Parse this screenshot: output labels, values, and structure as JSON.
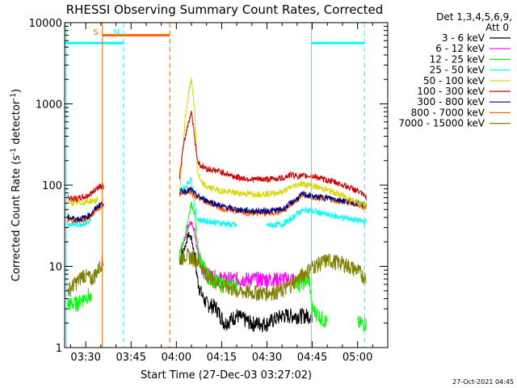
{
  "chart_data": {
    "type": "line",
    "title": "RHESSI Observing Summary Count Rates, Corrected",
    "xlabel": "Start Time (27-Dec-03 03:27:02)",
    "ylabel_parts": [
      "Corrected Count Rate (s",
      "-1",
      " detector",
      "-1",
      ")"
    ],
    "yscale": "log",
    "ylim": [
      1,
      10000
    ],
    "xlim_minutes": [
      203,
      310
    ],
    "x_ticks": [
      {
        "label": "03:30",
        "value": 210
      },
      {
        "label": "03:45",
        "value": 225
      },
      {
        "label": "04:00",
        "value": 240
      },
      {
        "label": "04:15",
        "value": 255
      },
      {
        "label": "04:30",
        "value": 270
      },
      {
        "label": "04:45",
        "value": 285
      },
      {
        "label": "05:00",
        "value": 300
      }
    ],
    "y_ticks": [
      {
        "label": "1",
        "value": 1
      },
      {
        "label": "10",
        "value": 10
      },
      {
        "label": "100",
        "value": 100
      },
      {
        "label": "1000",
        "value": 1000
      },
      {
        "label": "10000",
        "value": 10000
      }
    ],
    "legend_header": [
      "Det 1,3,4,5,6,9,",
      "Att 0"
    ],
    "series": [
      {
        "name": "3 - 6 keV",
        "color": "#000000",
        "points": [
          [
            241,
            12
          ],
          [
            243,
            18
          ],
          [
            244,
            25
          ],
          [
            245,
            22
          ],
          [
            246,
            14
          ],
          [
            247,
            7
          ],
          [
            248,
            5
          ],
          [
            249,
            4
          ],
          [
            250,
            3.5
          ],
          [
            253,
            3.2
          ],
          [
            256,
            2
          ],
          [
            260,
            2.5
          ],
          [
            265,
            2
          ],
          [
            270,
            2
          ],
          [
            275,
            2.5
          ],
          [
            280,
            2.5
          ],
          [
            285,
            2.5
          ]
        ]
      },
      {
        "name": "6 - 12 keV",
        "color": "#ff00ff",
        "points": [
          [
            241,
            15
          ],
          [
            243,
            22
          ],
          [
            244,
            32
          ],
          [
            245,
            35
          ],
          [
            246,
            28
          ],
          [
            247,
            15
          ],
          [
            248,
            10
          ],
          [
            249,
            9
          ],
          [
            250,
            8
          ],
          [
            255,
            7
          ],
          [
            260,
            7
          ],
          [
            265,
            7
          ],
          [
            270,
            7
          ],
          [
            275,
            7
          ],
          [
            279,
            7
          ]
        ]
      },
      {
        "name": "12 - 25 keV",
        "color": "#00ff00",
        "points": [
          [
            204,
            3.5
          ],
          [
            207,
            3.5
          ],
          [
            209,
            4
          ],
          [
            211,
            4.5
          ],
          [
            212,
            3.5
          ],
          [
            241,
            14
          ],
          [
            243,
            25
          ],
          [
            244,
            40
          ],
          [
            245,
            60
          ],
          [
            246,
            45
          ],
          [
            247,
            18
          ],
          [
            248,
            12
          ],
          [
            249,
            10
          ],
          [
            250,
            8
          ],
          [
            255,
            6
          ],
          [
            260,
            6
          ],
          [
            270,
            6
          ],
          [
            280,
            6
          ],
          [
            284,
            7
          ],
          [
            285,
            3
          ],
          [
            290,
            2
          ],
          [
            300,
            2
          ],
          [
            303,
            2
          ]
        ]
      },
      {
        "name": "25 - 50 keV",
        "color": "#00ffff",
        "points": [
          [
            204,
            33
          ],
          [
            207,
            33
          ],
          [
            210,
            34
          ],
          [
            212,
            36
          ],
          [
            241,
            85
          ],
          [
            242,
            88
          ],
          [
            243,
            95
          ],
          [
            244,
            110
          ],
          [
            245,
            120
          ],
          [
            246,
            55
          ],
          [
            247,
            38
          ],
          [
            250,
            36
          ],
          [
            255,
            34
          ],
          [
            260,
            32
          ],
          [
            270,
            32
          ],
          [
            275,
            33
          ],
          [
            278,
            38
          ],
          [
            280,
            45
          ],
          [
            283,
            50
          ],
          [
            286,
            47
          ],
          [
            290,
            43
          ],
          [
            295,
            40
          ],
          [
            300,
            37
          ],
          [
            303,
            35
          ]
        ]
      },
      {
        "name": "50 - 100 keV",
        "color": "#d8d800",
        "points": [
          [
            204,
            62
          ],
          [
            207,
            60
          ],
          [
            210,
            62
          ],
          [
            212,
            64
          ],
          [
            214,
            65
          ],
          [
            241,
            80
          ],
          [
            242,
            230
          ],
          [
            243,
            700
          ],
          [
            244,
            1300
          ],
          [
            245,
            2000
          ],
          [
            246,
            900
          ],
          [
            247,
            150
          ],
          [
            248,
            110
          ],
          [
            250,
            95
          ],
          [
            255,
            85
          ],
          [
            260,
            80
          ],
          [
            265,
            78
          ],
          [
            270,
            78
          ],
          [
            275,
            82
          ],
          [
            278,
            95
          ],
          [
            281,
            105
          ],
          [
            284,
            100
          ],
          [
            288,
            92
          ],
          [
            292,
            82
          ],
          [
            296,
            72
          ],
          [
            300,
            62
          ],
          [
            303,
            55
          ]
        ]
      },
      {
        "name": "100 - 300 keV",
        "color": "#cc0000",
        "points": [
          [
            204,
            70
          ],
          [
            207,
            68
          ],
          [
            210,
            72
          ],
          [
            212,
            80
          ],
          [
            214,
            95
          ],
          [
            215,
            100
          ],
          [
            216,
            95
          ],
          [
            241,
            120
          ],
          [
            242,
            250
          ],
          [
            243,
            400
          ],
          [
            244,
            600
          ],
          [
            245,
            800
          ],
          [
            246,
            400
          ],
          [
            247,
            200
          ],
          [
            248,
            175
          ],
          [
            250,
            160
          ],
          [
            255,
            145
          ],
          [
            260,
            125
          ],
          [
            265,
            118
          ],
          [
            270,
            118
          ],
          [
            275,
            122
          ],
          [
            278,
            135
          ],
          [
            281,
            128
          ],
          [
            284,
            130
          ],
          [
            286,
            128
          ],
          [
            288,
            120
          ],
          [
            292,
            110
          ],
          [
            296,
            98
          ],
          [
            300,
            85
          ],
          [
            303,
            70
          ]
        ]
      },
      {
        "name": "300 - 800 keV",
        "color": "#000080",
        "points": [
          [
            204,
            40
          ],
          [
            207,
            38
          ],
          [
            210,
            40
          ],
          [
            212,
            45
          ],
          [
            214,
            55
          ],
          [
            216,
            62
          ],
          [
            241,
            82
          ],
          [
            243,
            85
          ],
          [
            245,
            88
          ],
          [
            246,
            78
          ],
          [
            248,
            70
          ],
          [
            250,
            65
          ],
          [
            255,
            55
          ],
          [
            260,
            50
          ],
          [
            265,
            48
          ],
          [
            270,
            48
          ],
          [
            275,
            50
          ],
          [
            278,
            60
          ],
          [
            282,
            78
          ],
          [
            285,
            72
          ],
          [
            290,
            70
          ],
          [
            295,
            65
          ],
          [
            300,
            60
          ],
          [
            303,
            55
          ]
        ]
      },
      {
        "name": "800 - 7000 keV",
        "color": "#ff6600",
        "points": [
          [
            204,
            38
          ],
          [
            207,
            37
          ],
          [
            210,
            38
          ],
          [
            212,
            42
          ],
          [
            214,
            52
          ],
          [
            216,
            58
          ],
          [
            241,
            76
          ],
          [
            243,
            80
          ],
          [
            245,
            82
          ],
          [
            246,
            74
          ],
          [
            248,
            68
          ],
          [
            250,
            62
          ],
          [
            255,
            52
          ],
          [
            260,
            48
          ],
          [
            265,
            45
          ],
          [
            270,
            45
          ],
          [
            275,
            48
          ],
          [
            278,
            58
          ],
          [
            282,
            75
          ],
          [
            285,
            70
          ],
          [
            290,
            68
          ],
          [
            295,
            62
          ],
          [
            300,
            58
          ],
          [
            303,
            52
          ]
        ]
      },
      {
        "name": "7000 - 15000 keV",
        "color": "#808000",
        "points": [
          [
            204,
            5
          ],
          [
            206,
            6
          ],
          [
            208,
            7
          ],
          [
            209,
            8
          ],
          [
            212,
            7
          ],
          [
            214,
            9
          ],
          [
            215,
            11
          ],
          [
            216,
            12
          ],
          [
            241,
            12
          ],
          [
            243,
            14
          ],
          [
            245,
            13
          ],
          [
            247,
            12
          ],
          [
            249,
            9
          ],
          [
            252,
            7
          ],
          [
            255,
            6
          ],
          [
            260,
            5
          ],
          [
            265,
            4.8
          ],
          [
            270,
            4.8
          ],
          [
            275,
            5
          ],
          [
            278,
            6
          ],
          [
            282,
            8
          ],
          [
            285,
            10
          ],
          [
            290,
            12
          ],
          [
            295,
            11
          ],
          [
            300,
            9
          ],
          [
            303,
            7
          ]
        ]
      }
    ],
    "event_lines": [
      {
        "label": "S",
        "color": "#ff6600",
        "style": "solid",
        "x": 215.5
      },
      {
        "label": "",
        "color": "#ff6600",
        "style": "dashed",
        "x": 237.8
      },
      {
        "label": "",
        "color": "#00ffff",
        "style": "solid",
        "x": 203.5
      },
      {
        "label": "N",
        "color": "#00ffff",
        "style": "dashed",
        "x": 222.5
      },
      {
        "label": "",
        "color": "#00ffff",
        "style": "solid",
        "x": 284.7
      },
      {
        "label": "",
        "color": "#00ffff",
        "style": "dashed",
        "x": 302.3
      }
    ],
    "flag_bars": [
      {
        "color": "#ff6600",
        "from": 215.5,
        "to": 237.8,
        "level": 7000
      },
      {
        "color": "#00ffff",
        "from": 203,
        "to": 222.5,
        "level": 5600
      },
      {
        "color": "#00ffff",
        "from": 284.7,
        "to": 302.3,
        "level": 5600
      }
    ]
  },
  "footer_date": "27-Oct-2021 04:45"
}
